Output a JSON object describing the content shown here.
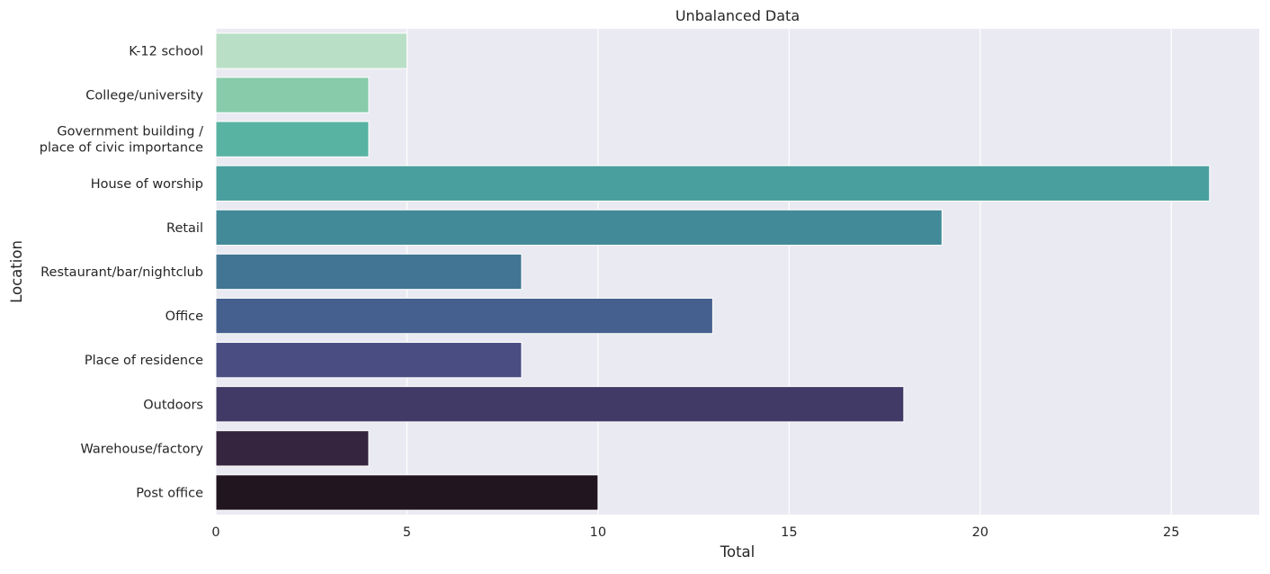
{
  "chart_data": {
    "type": "bar",
    "orientation": "horizontal",
    "title": "Unbalanced Data",
    "xlabel": "Total",
    "ylabel": "Location",
    "categories": [
      [
        "K-12 school"
      ],
      [
        "College/university"
      ],
      [
        "Government building /",
        "place of civic importance"
      ],
      [
        "House of worship"
      ],
      [
        "Retail"
      ],
      [
        "Restaurant/bar/nightclub"
      ],
      [
        "Office"
      ],
      [
        "Place of residence"
      ],
      [
        "Outdoors"
      ],
      [
        "Warehouse/factory"
      ],
      [
        "Post office"
      ]
    ],
    "values": [
      5,
      4,
      4,
      26,
      19,
      8,
      13,
      8,
      18,
      4,
      10
    ],
    "colors": [
      "#b9dfc6",
      "#87cbab",
      "#59b3a3",
      "#489f9e",
      "#428a98",
      "#417593",
      "#45608e",
      "#494d82",
      "#423a66",
      "#35253f",
      "#211520"
    ],
    "xlim": [
      0,
      27.3
    ],
    "xticks": [
      0,
      5,
      10,
      15,
      20,
      25
    ],
    "grid": true,
    "background": "#eaeaf2"
  }
}
